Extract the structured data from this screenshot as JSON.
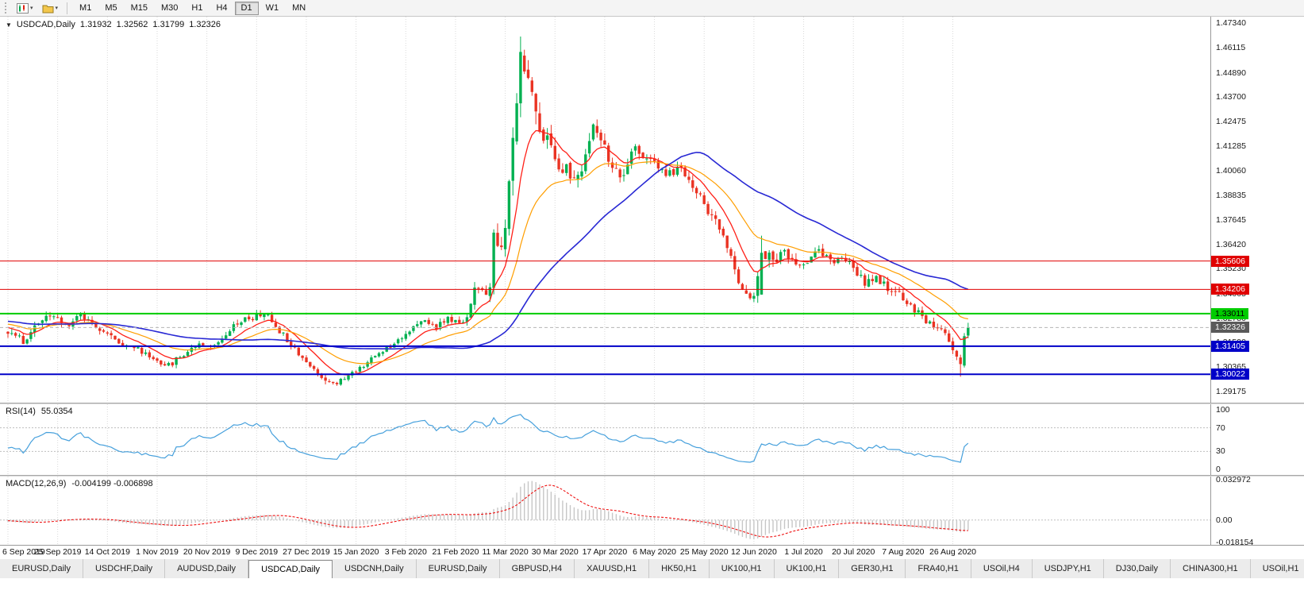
{
  "toolbar": {
    "timeframes": [
      "M1",
      "M5",
      "M15",
      "M30",
      "H1",
      "H4",
      "D1",
      "W1",
      "MN"
    ],
    "active_timeframe": "D1",
    "new_chart_tooltip": "New Chart",
    "profiles_tooltip": "Profiles"
  },
  "chart_header": {
    "symbol": "USDCAD,Daily",
    "open": "1.31932",
    "high": "1.32562",
    "low": "1.31799",
    "close": "1.32326"
  },
  "rsi_panel": {
    "title": "RSI(14)",
    "value": "55.0354",
    "axis": [
      {
        "v": 100,
        "label": "100"
      },
      {
        "v": 70,
        "label": "70"
      },
      {
        "v": 30,
        "label": "30"
      },
      {
        "v": 0,
        "label": "0"
      }
    ]
  },
  "macd_panel": {
    "title": "MACD(12,26,9)",
    "values": "-0.004199 -0.006898",
    "axis": [
      {
        "v": 0.032972,
        "label": "0.032972"
      },
      {
        "v": 0,
        "label": "0.00"
      },
      {
        "v": -0.018154,
        "label": "-0.018154"
      }
    ]
  },
  "bottom_tabs": {
    "active_index": 3,
    "items": [
      "EURUSD,Daily",
      "USDCHF,Daily",
      "AUDUSD,Daily",
      "USDCAD,Daily",
      "USDCNH,Daily",
      "EURUSD,Daily",
      "GBPUSD,H4",
      "XAUUSD,H1",
      "HK50,H1",
      "UK100,H1",
      "UK100,H1",
      "GER30,H1",
      "FRA40,H1",
      "USOil,H4",
      "USDJPY,H1",
      "DJ30,Daily",
      "CHINA300,H1",
      "USOil,H1"
    ]
  },
  "chart_data": {
    "type": "candlestick",
    "symbol": "USDCAD",
    "period": "Daily",
    "y_domain": [
      1.2862,
      1.4766
    ],
    "y_ticks": [
      "1.47340",
      "1.46115",
      "1.44890",
      "1.43700",
      "1.42475",
      "1.41285",
      "1.40060",
      "1.38835",
      "1.37645",
      "1.36420",
      "1.35230",
      "1.34005",
      "1.32780",
      "1.31590",
      "1.30365",
      "1.29175"
    ],
    "x_labels": [
      "6 Sep 2019",
      "25 Sep 2019",
      "14 Oct 2019",
      "1 Nov 2019",
      "20 Nov 2019",
      "9 Dec 2019",
      "27 Dec 2019",
      "15 Jan 2020",
      "3 Feb 2020",
      "21 Feb 2020",
      "11 Mar 2020",
      "30 Mar 2020",
      "17 Apr 2020",
      "6 May 2020",
      "25 May 2020",
      "12 Jun 2020",
      "1 Jul 2020",
      "20 Jul 2020",
      "7 Aug 2020",
      "26 Aug 2020"
    ],
    "x_label_step": 13,
    "count": 252,
    "warmup": 60,
    "seed": 11,
    "clamp": [
      1.2945,
      1.4662
    ],
    "anchors": [
      [
        -60,
        1.3265,
        0.004
      ],
      [
        -45,
        1.33,
        0.004
      ],
      [
        -30,
        1.3235,
        0.004
      ],
      [
        -15,
        1.329,
        0.004
      ],
      [
        -5,
        1.3245,
        0.004
      ],
      [
        0,
        1.3215,
        0.0045
      ],
      [
        4,
        1.3165,
        0.0045
      ],
      [
        8,
        1.326,
        0.005
      ],
      [
        12,
        1.329,
        0.0045
      ],
      [
        15,
        1.324,
        0.004
      ],
      [
        19,
        1.33,
        0.0045
      ],
      [
        23,
        1.3245,
        0.004
      ],
      [
        28,
        1.317,
        0.004
      ],
      [
        33,
        1.3135,
        0.0035
      ],
      [
        38,
        1.308,
        0.0035
      ],
      [
        42,
        1.3045,
        0.0035
      ],
      [
        46,
        1.3105,
        0.004
      ],
      [
        50,
        1.316,
        0.004
      ],
      [
        54,
        1.314,
        0.0035
      ],
      [
        58,
        1.323,
        0.004
      ],
      [
        61,
        1.327,
        0.004
      ],
      [
        64,
        1.328,
        0.004
      ],
      [
        67,
        1.3305,
        0.004
      ],
      [
        71,
        1.322,
        0.004
      ],
      [
        75,
        1.313,
        0.0035
      ],
      [
        79,
        1.304,
        0.003
      ],
      [
        83,
        1.2975,
        0.003
      ],
      [
        86,
        1.296,
        0.0028
      ],
      [
        89,
        1.2995,
        0.0028
      ],
      [
        93,
        1.305,
        0.003
      ],
      [
        97,
        1.3105,
        0.003
      ],
      [
        101,
        1.316,
        0.003
      ],
      [
        105,
        1.322,
        0.0035
      ],
      [
        109,
        1.3265,
        0.0035
      ],
      [
        112,
        1.3235,
        0.0035
      ],
      [
        115,
        1.3275,
        0.0035
      ],
      [
        118,
        1.325,
        0.0035
      ],
      [
        120,
        1.329,
        0.004
      ],
      [
        122,
        1.3425,
        0.007
      ],
      [
        124,
        1.3395,
        0.006
      ],
      [
        126,
        1.343,
        0.007
      ],
      [
        127,
        1.366,
        0.011
      ],
      [
        129,
        1.361,
        0.01
      ],
      [
        131,
        1.39,
        0.014
      ],
      [
        133,
        1.433,
        0.019
      ],
      [
        134,
        1.464,
        0.021
      ],
      [
        136,
        1.445,
        0.016
      ],
      [
        139,
        1.423,
        0.012
      ],
      [
        143,
        1.407,
        0.01
      ],
      [
        146,
        1.401,
        0.009
      ],
      [
        149,
        1.3955,
        0.008
      ],
      [
        153,
        1.4215,
        0.008
      ],
      [
        157,
        1.4075,
        0.007
      ],
      [
        160,
        1.395,
        0.007
      ],
      [
        164,
        1.4115,
        0.007
      ],
      [
        168,
        1.405,
        0.006
      ],
      [
        172,
        1.3985,
        0.006
      ],
      [
        176,
        1.402,
        0.006
      ],
      [
        180,
        1.3905,
        0.006
      ],
      [
        184,
        1.378,
        0.006
      ],
      [
        187,
        1.3685,
        0.006
      ],
      [
        190,
        1.3505,
        0.006
      ],
      [
        193,
        1.3405,
        0.006
      ],
      [
        195,
        1.337,
        0.006
      ],
      [
        197,
        1.362,
        0.009
      ],
      [
        200,
        1.356,
        0.007
      ],
      [
        203,
        1.36,
        0.006
      ],
      [
        206,
        1.353,
        0.006
      ],
      [
        209,
        1.357,
        0.005
      ],
      [
        212,
        1.362,
        0.005
      ],
      [
        215,
        1.355,
        0.005
      ],
      [
        218,
        1.3585,
        0.005
      ],
      [
        221,
        1.352,
        0.005
      ],
      [
        224,
        1.3455,
        0.005
      ],
      [
        227,
        1.348,
        0.005
      ],
      [
        230,
        1.342,
        0.005
      ],
      [
        234,
        1.338,
        0.005
      ],
      [
        237,
        1.3325,
        0.0045
      ],
      [
        240,
        1.327,
        0.0045
      ],
      [
        243,
        1.323,
        0.004
      ],
      [
        246,
        1.3175,
        0.004
      ],
      [
        248,
        1.3095,
        0.004
      ],
      [
        249,
        1.304,
        0.0045
      ],
      [
        250,
        1.319,
        0.005
      ],
      [
        251,
        1.3233,
        0.004
      ]
    ],
    "overrides": {
      "83": {
        "low": 1.2952
      },
      "127": {
        "open": 1.3428
      },
      "134": {
        "high": 1.4668,
        "low": 1.427
      },
      "197": {
        "open": 1.3395,
        "high": 1.3686
      },
      "249": {
        "open": 1.3085,
        "low": 1.299
      },
      "250": {
        "open": 1.3045,
        "close": 1.319,
        "high": 1.3205,
        "low": 1.3035
      },
      "251": {
        "open": 1.31932,
        "high": 1.32562,
        "low": 1.31799,
        "close": 1.32326
      }
    },
    "colors": {
      "up": "#00b050",
      "down": "#ea3323",
      "grid": "#d9d9d9",
      "ma_fast": "#ff2018",
      "ma_mid": "#ff9e00",
      "ma_slow": "#2828d4",
      "rsi": "#46a0dc",
      "rsi_level": "#bfbfbf",
      "macd_hist": "#c6c6c6",
      "macd_signal": "#ee1111"
    },
    "moving_averages": [
      {
        "type": "ema",
        "period": 10,
        "color_key": "ma_fast",
        "width": 1.3
      },
      {
        "type": "ema",
        "period": 25,
        "color_key": "ma_mid",
        "width": 1.2
      },
      {
        "type": "sma",
        "period": 50,
        "color_key": "ma_slow",
        "width": 1.6
      }
    ],
    "h_lines": [
      {
        "price": 1.35606,
        "label": "1.35606",
        "color": "#e00000",
        "width": 1,
        "tag_bg": "#e00000",
        "tag_fg": "#ffffff"
      },
      {
        "price": 1.34206,
        "label": "1.34206",
        "color": "#e00000",
        "width": 1,
        "tag_bg": "#e00000",
        "tag_fg": "#ffffff"
      },
      {
        "price": 1.33011,
        "label": "1.33011",
        "color": "#00cc00",
        "width": 2,
        "tag_bg": "#00cc00",
        "tag_fg": "#000000"
      },
      {
        "price": 1.31405,
        "label": "1.31405",
        "color": "#0000c8",
        "width": 2,
        "tag_bg": "#0000c8",
        "tag_fg": "#ffffff"
      },
      {
        "price": 1.30022,
        "label": "1.30022",
        "color": "#0000c8",
        "width": 2,
        "tag_bg": "#0000c8",
        "tag_fg": "#ffffff"
      }
    ],
    "current": {
      "price": 1.32326,
      "label": "1.32326",
      "tag_bg": "#5a5a5a",
      "tag_fg": "#ffffff",
      "line_color": "#b4b4b4"
    },
    "rsi": {
      "period": 14,
      "levels": [
        70,
        30
      ],
      "range": [
        -10,
        110
      ],
      "last_value": 55.0354
    },
    "macd": {
      "fast": 12,
      "slow": 26,
      "signal": 9,
      "domain": [
        -0.0202,
        0.0355
      ],
      "last_macd": -0.004199,
      "last_signal": -0.006898
    }
  }
}
